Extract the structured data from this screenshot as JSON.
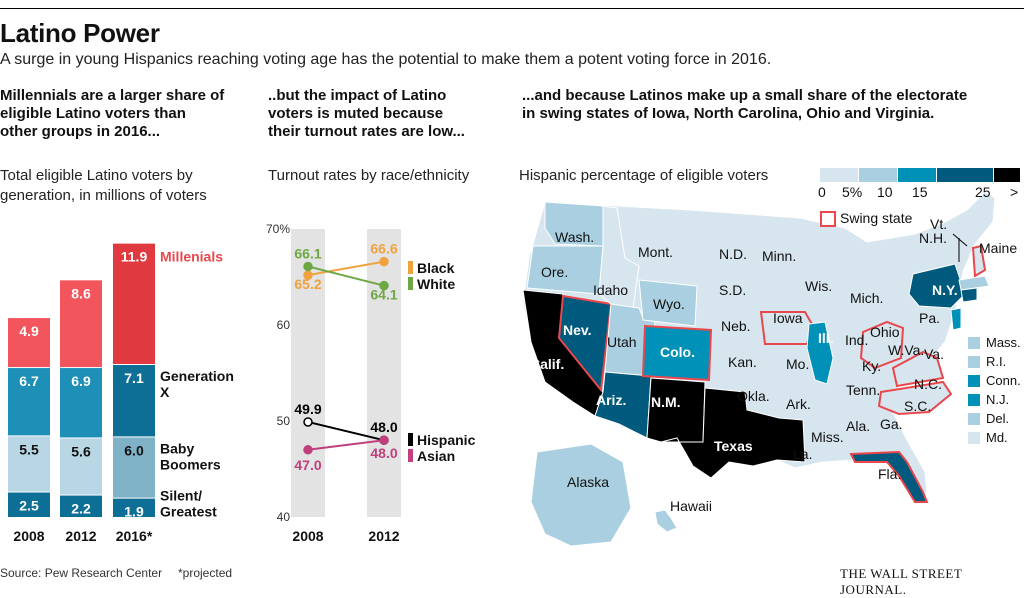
{
  "header": {
    "title": "Latino Power",
    "subtitle": "A surge in young Hispanics reaching voting age has the potential to make them a potent voting force in 2016."
  },
  "panel1": {
    "heading": [
      "Millennials are a larger share of",
      "eligible Latino voters than",
      "other groups in 2016..."
    ],
    "subheading": [
      "Total eligible Latino voters by",
      "generation, in millions of voters"
    ]
  },
  "panel2": {
    "heading": [
      "..but the impact of Latino",
      "voters is muted because",
      "their turnout rates are low..."
    ],
    "subheading": "Turnout rates by race/ethnicity"
  },
  "panel3": {
    "heading": [
      "...and because Latinos make up a small share of the electorate",
      "in swing states of Iowa, North Carolina, Ohio and Virginia."
    ],
    "subheading": "Hispanic percentage of eligible voters",
    "legend_ticks": [
      "0",
      "5%",
      "10",
      "15",
      "25",
      ">"
    ],
    "legend_colors": [
      "#d7e5ef",
      "#a9cfe0",
      "#0091b8",
      "#005a7d",
      "#000000"
    ],
    "swing_label": "Swing state",
    "swing_color": "#e8474c",
    "state_labels": [
      "Wash.",
      "Ore.",
      "Calif.",
      "Nev.",
      "Idaho",
      "Mont.",
      "Wyo.",
      "Utah",
      "Ariz.",
      "Colo.",
      "N.M.",
      "N.D.",
      "S.D.",
      "Neb.",
      "Kan.",
      "Okla.",
      "Texas",
      "Minn.",
      "Iowa",
      "Mo.",
      "Ark.",
      "La.",
      "Wis.",
      "Ill.",
      "Mich.",
      "Ind.",
      "Ohio",
      "Ky.",
      "Tenn.",
      "Miss.",
      "Ala.",
      "Ga.",
      "Fla.",
      "S.C.",
      "N.C.",
      "Va.",
      "W.Va.",
      "Pa.",
      "N.Y.",
      "Vt.",
      "N.H.",
      "Maine",
      "Alaska",
      "Hawaii"
    ],
    "ne_labels": [
      "Mass.",
      "R.I.",
      "Conn.",
      "N.J.",
      "Del.",
      "Md."
    ],
    "ne_colors": [
      "#a9cfe0",
      "#a9cfe0",
      "#0091b8",
      "#0091b8",
      "#a9cfe0",
      "#d7e5ef"
    ]
  },
  "chart_data": [
    {
      "type": "bar",
      "stacked": true,
      "categories": [
        "2008",
        "2012",
        "2016*"
      ],
      "series": [
        {
          "name": "Silent/ Greatest",
          "values": [
            2.5,
            2.2,
            1.9
          ],
          "colors": [
            "#0e6f96",
            "#0e6f96",
            "#0e6f96"
          ]
        },
        {
          "name": "Baby Boomers",
          "values": [
            5.5,
            5.6,
            6.0
          ],
          "colors": [
            "#b9d6e4",
            "#b9d6e4",
            "#7fb1c7"
          ]
        },
        {
          "name": "Generation X",
          "values": [
            6.7,
            6.9,
            7.1
          ],
          "colors": [
            "#1e8fb7",
            "#1e8fb7",
            "#0e6f96"
          ]
        },
        {
          "name": "Millenials",
          "values": [
            4.9,
            8.6,
            11.9
          ],
          "colors": [
            "#f2555b",
            "#f2555b",
            "#e0393f"
          ]
        }
      ],
      "label_colors": {
        "Millenials": "#e8474c"
      }
    },
    {
      "type": "line",
      "x": [
        "2008",
        "2012"
      ],
      "ylim": [
        40,
        70
      ],
      "yticks": [
        "70%",
        "60",
        "50",
        "40"
      ],
      "ytick_values": [
        70,
        60,
        50,
        40
      ],
      "series": [
        {
          "name": "Black",
          "values": [
            65.2,
            66.6
          ],
          "color": "#f0a23e"
        },
        {
          "name": "White",
          "values": [
            66.1,
            64.1
          ],
          "color": "#6ea844"
        },
        {
          "name": "Hispanic",
          "values": [
            49.9,
            48.0
          ],
          "color": "#000000"
        },
        {
          "name": "Asian",
          "values": [
            47.0,
            48.0
          ],
          "color": "#c0407e"
        }
      ]
    }
  ],
  "footer": {
    "source": "Source: Pew Research Center",
    "note": "*projected",
    "brand": "THE WALL STREET JOURNAL."
  }
}
